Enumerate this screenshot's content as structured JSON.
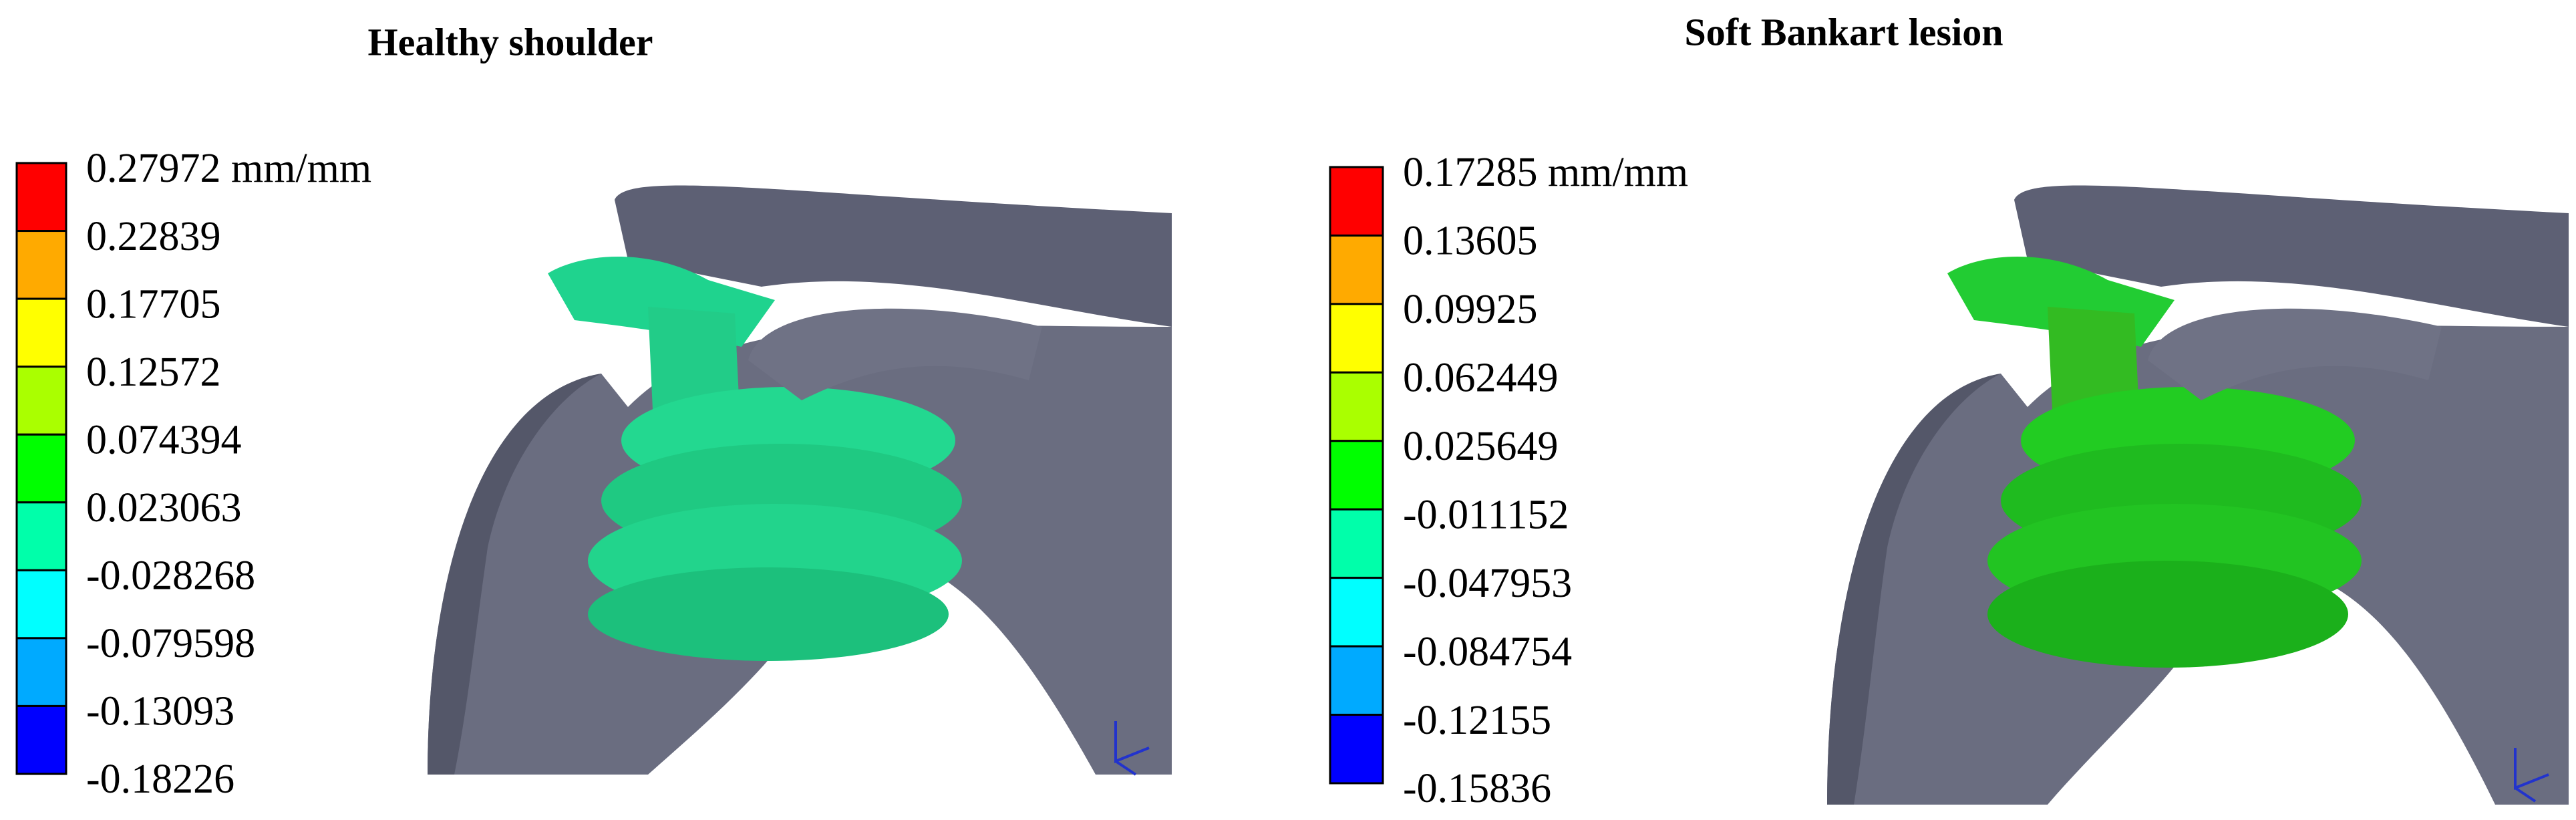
{
  "panels": [
    {
      "title": "Healthy shoulder",
      "legend": {
        "labels": [
          "0.27972 mm/mm",
          "0.22839",
          "0.17705",
          "0.12572",
          "0.074394",
          "0.023063",
          "-0.028268",
          "-0.079598",
          "-0.13093",
          "-0.18226"
        ],
        "colors": [
          "#ff0000",
          "#ffaa00",
          "#ffff00",
          "#aaff00",
          "#00ff00",
          "#00ffaa",
          "#00ffff",
          "#00aaff",
          "#0000ff"
        ]
      }
    },
    {
      "title": "Soft Bankart lesion",
      "legend": {
        "labels": [
          "0.17285 mm/mm",
          "0.13605",
          "0.09925",
          "0.062449",
          "0.025649",
          "-0.011152",
          "-0.047953",
          "-0.084754",
          "-0.12155",
          "-0.15836"
        ],
        "colors": [
          "#ff0000",
          "#ffaa00",
          "#ffff00",
          "#aaff00",
          "#00ff00",
          "#00ffaa",
          "#00ffff",
          "#00aaff",
          "#0000ff"
        ]
      }
    }
  ]
}
